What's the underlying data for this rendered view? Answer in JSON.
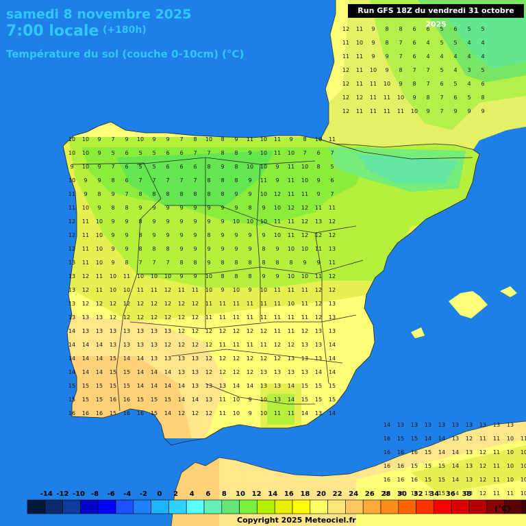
{
  "header": {
    "date": "samedi 8 novembre 2025",
    "time": "7:00 locale",
    "offset": "(+180h)",
    "subtitle": "Température du sol (couche 0-10cm) (°C)"
  },
  "run_label": "Run GFS 18Z du vendredi 31 octobre 2025",
  "legend": {
    "unit": "(°C)",
    "ticks": [
      "-14",
      "-12",
      "-10",
      "-8",
      "-6",
      "-4",
      "-2",
      "0",
      "2",
      "4",
      "6",
      "8",
      "10",
      "12",
      "14",
      "16",
      "18",
      "20",
      "22",
      "24",
      "26",
      "28",
      "30",
      "32",
      "34",
      "36",
      "38"
    ],
    "colors": [
      "#001a3c",
      "#0a2a6a",
      "#0c3c9c",
      "#0000c8",
      "#0000ff",
      "#1e50ff",
      "#1e82ff",
      "#1eb4ff",
      "#32d2ff",
      "#5affff",
      "#64f0b4",
      "#64e678",
      "#78f03c",
      "#b4f000",
      "#e6f000",
      "#ffff00",
      "#ffff64",
      "#ffe678",
      "#ffc864",
      "#ffaa3c",
      "#ff8c1e",
      "#ff6400",
      "#ff3200",
      "#ff0000",
      "#dc0000",
      "#b40000",
      "#8c0000",
      "#5a0000",
      "#3c0000",
      "#000000"
    ]
  },
  "copyright": "Copyright 2025 Meteociel.fr",
  "grid_values": {
    "north_east_rows": [
      "12 11 9 8 8 6 6 5 6 5 5",
      "11 10 9 8 7 6 4 5 5 4 4",
      "11 11 9 9 7 6 4 4 4 4 4",
      "12 11 10 9 8 7 7 5 4 3 5",
      "12 11 11 10 9 8 7 6 5 4 6",
      "12 12 11 11 10 9 8 7 6 5 8",
      "12 11 11 11 11 10 9 7 9 9 9"
    ],
    "iberia_rows": [
      "10 10 9 7 9 10 9 9 7 8 10 8 9 11 10 11 9 8 10 11",
      "10 10 9 5 6 5 5 6 6 7 7 8 8 9 10 11 10 7 6 7",
      "9 10 9 7 6 5 5 6 6 6 8 9 8 10 10 9 11 10 8 5",
      "10 9 9 8 6 7 7 7 7 7 8 8 8 9 11 9 11 10 9 6",
      "11 9 8 9 7 8 8 8 8 8 8 8 9 9 10 12 11 11 9 7",
      "11 10 9 8 8 9 9 9 9 9 9 9 9 8 9 10 12 12 11 11",
      "12 11 10 9 9 8 9 9 9 9 9 9 10 10 10 11 11 12 13 12",
      "12 11 10 9 9 8 9 9 9 9 8 9 9 9 9 10 11 12 12 12",
      "12 11 10 9 9 8 8 8 9 9 9 9 9 9 8 9 10 10 11 13",
      "13 11 10 9 8 7 7 7 8 8 9 8 8 8 8 8 8 9 9 11",
      "13 12 11 10 11 10 10 10 9 9 10 8 8 8 9 9 10 10 11 12",
      "13 12 11 10 10 11 11 12 11 11 10 9 10 9 10 11 11 11 12 12",
      "13 12 12 12 12 12 12 12 12 12 11 11 11 11 11 11 10 11 12 13",
      "13 13 13 12 12 12 12 12 12 12 11 11 11 11 11 11 11 11 12 13",
      "14 13 13 13 13 13 13 13 12 12 12 12 12 12 12 11 11 12 13 13",
      "14 14 14 13 13 13 13 12 12 12 12 11 11 11 11 12 12 13 13 14",
      "14 14 14 15 14 14 13 13 13 13 12 12 12 12 12 12 13 13 13 14",
      "14 14 14 15 15 14 14 14 13 13 12 12 12 12 13 13 13 13 14 14",
      "15 15 15 15 15 14 14 14 14 13 13 13 14 14 13 13 14 15 15 15",
      "15 15 15 16 16 15 15 15 14 14 13 11 10 9 10 13 14 15 15 15",
      "16 16 16 15 16 16 15 14 12 12 12 11 10 9 10 11 11 14 13 14"
    ],
    "south_rows": [
      "14 13 13 13 13 13 13 13 13 13",
      "16 15 15 14 14 13 12 11 11 10 11",
      "16 16 16 15 14 14 13 12 11 10 10",
      "16 16 15 15 15 14 13 12 11 10 10",
      "16 16 16 15 15 14 13 12 11 10 10 10 11",
      "16 16 16 15 15 14 13 12 11 11 10 10"
    ]
  }
}
